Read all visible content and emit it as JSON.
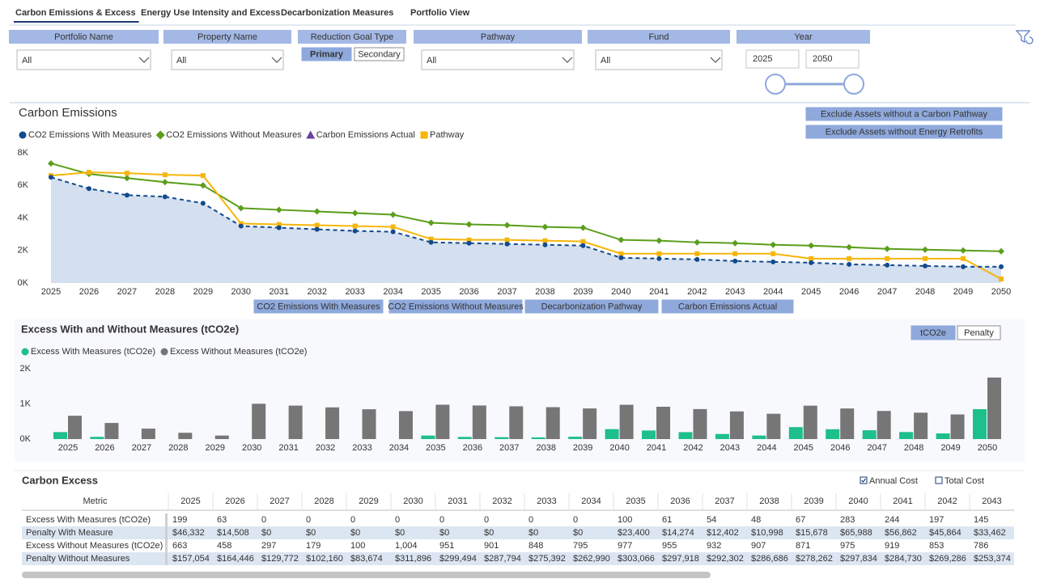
{
  "tabs": [
    "Carbon Emissions & Excess",
    "Energy Use Intensity and Excess",
    "Decarbonization Measures",
    "Portfolio View"
  ],
  "filters": {
    "portfolio": {
      "label": "Portfolio Name",
      "value": "All"
    },
    "property": {
      "label": "Property Name",
      "value": "All"
    },
    "goal_type": {
      "label": "Reduction Goal Type",
      "options": [
        "Primary",
        "Secondary"
      ]
    },
    "pathway": {
      "label": "Pathway",
      "value": "All"
    },
    "fund": {
      "label": "Fund",
      "value": "All"
    },
    "year": {
      "label": "Year",
      "start": "2025",
      "end": "2050"
    }
  },
  "chart_data": [
    {
      "type": "line",
      "title": "Carbon Emissions",
      "categories": [
        "2025",
        "2026",
        "2027",
        "2028",
        "2029",
        "2030",
        "2031",
        "2032",
        "2033",
        "2034",
        "2035",
        "2036",
        "2037",
        "2038",
        "2039",
        "2040",
        "2041",
        "2042",
        "2043",
        "2044",
        "2045",
        "2046",
        "2047",
        "2048",
        "2049",
        "2050"
      ],
      "ylim": [
        0,
        8000
      ],
      "yticks": [
        {
          "value": 0,
          "label": "0K"
        },
        {
          "value": 2000,
          "label": "2K"
        },
        {
          "value": 4000,
          "label": "4K"
        },
        {
          "value": 6000,
          "label": "6K"
        },
        {
          "value": 8000,
          "label": "8K"
        }
      ],
      "grid": false,
      "series": [
        {
          "name": "CO2 Emissions With Measures",
          "color": "#114a8f",
          "marker": "circle",
          "style": "dashed",
          "area": true,
          "values": [
            6500,
            5800,
            5400,
            5300,
            4900,
            3500,
            3400,
            3300,
            3200,
            3150,
            2500,
            2450,
            2400,
            2350,
            2300,
            1550,
            1500,
            1450,
            1350,
            1300,
            1250,
            1150,
            1100,
            1050,
            1000,
            1000
          ]
        },
        {
          "name": "CO2 Emissions Without Measures",
          "color": "#5a9e1a",
          "marker": "diamond",
          "style": "solid",
          "area": false,
          "values": [
            7350,
            6700,
            6450,
            6200,
            6000,
            4600,
            4500,
            4400,
            4300,
            4200,
            3700,
            3600,
            3550,
            3450,
            3400,
            2650,
            2600,
            2500,
            2450,
            2350,
            2300,
            2200,
            2100,
            2050,
            2000,
            1950
          ]
        },
        {
          "name": "Carbon Emissions Actual",
          "color": "#6b3fa0",
          "marker": "triangle",
          "style": "solid",
          "area": false,
          "values": [
            null,
            null,
            null,
            null,
            null,
            null,
            null,
            null,
            null,
            null,
            null,
            null,
            null,
            null,
            null,
            null,
            null,
            null,
            null,
            null,
            null,
            null,
            null,
            null,
            null,
            null
          ]
        },
        {
          "name": "Pathway",
          "color": "#f5b50a",
          "marker": "square",
          "style": "solid",
          "area": false,
          "values": [
            6600,
            6800,
            6750,
            6650,
            6600,
            3650,
            3600,
            3550,
            3500,
            3450,
            2700,
            2650,
            2650,
            2600,
            2550,
            1800,
            1800,
            1800,
            1800,
            1800,
            1500,
            1500,
            1500,
            1500,
            1500,
            250
          ]
        }
      ],
      "buttons": [
        "Exclude Assets without a Carbon Pathway",
        "Exclude Assets without Energy Retrofits"
      ],
      "toggles": [
        "CO2 Emissions With Measures",
        "CO2 Emissions Without Measures",
        "Decarbonization Pathway",
        "Carbon Emissions Actual"
      ]
    },
    {
      "type": "bar",
      "title": "Excess With and Without Measures (tCO2e)",
      "categories": [
        "2025",
        "2026",
        "2027",
        "2028",
        "2029",
        "2030",
        "2031",
        "2032",
        "2033",
        "2034",
        "2035",
        "2036",
        "2037",
        "2038",
        "2039",
        "2040",
        "2041",
        "2042",
        "2043",
        "2044",
        "2045",
        "2046",
        "2047",
        "2048",
        "2049",
        "2050"
      ],
      "ylim": [
        0,
        2000
      ],
      "yticks": [
        {
          "value": 0,
          "label": "0K"
        },
        {
          "value": 1000,
          "label": "1K"
        },
        {
          "value": 2000,
          "label": "2K"
        }
      ],
      "grid": false,
      "series": [
        {
          "name": "Excess With Measures (tCO2e)",
          "color": "#1dbf8a",
          "values": [
            199,
            63,
            0,
            0,
            0,
            0,
            0,
            0,
            0,
            0,
            100,
            61,
            54,
            48,
            67,
            283,
            244,
            197,
            145,
            100,
            340,
            280,
            250,
            200,
            160,
            850
          ]
        },
        {
          "name": "Excess Without Measures (tCO2e)",
          "color": "#767676",
          "values": [
            663,
            458,
            297,
            179,
            100,
            1004,
            951,
            901,
            848,
            795,
            977,
            955,
            932,
            907,
            871,
            975,
            919,
            853,
            786,
            720,
            950,
            870,
            800,
            750,
            700,
            1750
          ]
        }
      ],
      "toggles": [
        "tCO2e",
        "Penalty"
      ]
    }
  ],
  "table": {
    "title": "Carbon Excess",
    "options": [
      "Annual Cost",
      "Total Cost"
    ],
    "header": [
      "Metric",
      "2025",
      "2026",
      "2027",
      "2028",
      "2029",
      "2030",
      "2031",
      "2032",
      "2033",
      "2034",
      "2035",
      "2036",
      "2037",
      "2038",
      "2039",
      "2040",
      "2041",
      "2042",
      "2043"
    ],
    "rows": [
      [
        "Excess With Measures (tCO2e)",
        "199",
        "63",
        "0",
        "0",
        "0",
        "0",
        "0",
        "0",
        "0",
        "0",
        "100",
        "61",
        "54",
        "48",
        "67",
        "283",
        "244",
        "197",
        "145"
      ],
      [
        "Penalty With Measure",
        "$46,332",
        "$14,508",
        "$0",
        "$0",
        "$0",
        "$0",
        "$0",
        "$0",
        "$0",
        "$0",
        "$23,400",
        "$14,274",
        "$12,402",
        "$10,998",
        "$15,678",
        "$65,988",
        "$56,862",
        "$45,864",
        "$33,462"
      ],
      [
        "Excess Without Measures (tCO2e)",
        "663",
        "458",
        "297",
        "179",
        "100",
        "1,004",
        "951",
        "901",
        "848",
        "795",
        "977",
        "955",
        "932",
        "907",
        "871",
        "975",
        "919",
        "853",
        "786"
      ],
      [
        "Penalty Without Measures",
        "$157,054",
        "$164,446",
        "$129,772",
        "$102,160",
        "$83,674",
        "$311,896",
        "$299,494",
        "$287,794",
        "$275,392",
        "$262,990",
        "$303,066",
        "$297,918",
        "$292,302",
        "$286,686",
        "$278,262",
        "$297,834",
        "$284,730",
        "$269,286",
        "$253,374"
      ]
    ]
  }
}
